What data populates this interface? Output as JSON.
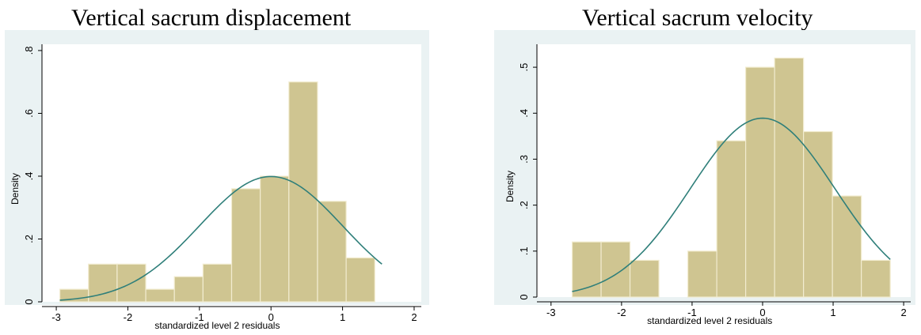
{
  "chart_data": [
    {
      "type": "histogram",
      "title": "Vertical sacrum displacement",
      "xlabel": "standardized level 2 residuals",
      "ylabel": "Density",
      "xlim": [
        -3.2,
        2.1
      ],
      "ylim": [
        0,
        0.82
      ],
      "xticks": [
        -3,
        -2,
        -1,
        0,
        1,
        2
      ],
      "yticks": [
        0,
        0.2,
        0.4,
        0.6,
        0.8
      ],
      "ytick_labels": [
        "0",
        ".2",
        ".4",
        ".6",
        ".8"
      ],
      "bins": [
        {
          "x0": -2.95,
          "x1": -2.55,
          "density": 0.04
        },
        {
          "x0": -2.55,
          "x1": -2.15,
          "density": 0.12
        },
        {
          "x0": -2.15,
          "x1": -1.75,
          "density": 0.12
        },
        {
          "x0": -1.75,
          "x1": -1.35,
          "density": 0.04
        },
        {
          "x0": -1.35,
          "x1": -0.95,
          "density": 0.08
        },
        {
          "x0": -0.95,
          "x1": -0.55,
          "density": 0.12
        },
        {
          "x0": -0.55,
          "x1": -0.15,
          "density": 0.36
        },
        {
          "x0": -0.15,
          "x1": 0.25,
          "density": 0.4
        },
        {
          "x0": 0.25,
          "x1": 0.65,
          "density": 0.7
        },
        {
          "x0": 0.65,
          "x1": 1.05,
          "density": 0.32
        },
        {
          "x0": 1.05,
          "x1": 1.45,
          "density": 0.14
        }
      ],
      "curve": {
        "type": "normal",
        "mean": 0,
        "sd": 1,
        "x_range": [
          -2.95,
          1.55
        ]
      },
      "colors": {
        "bar_fill": "#cfc591",
        "bar_edge": "#f2ecd0",
        "curve": "#2f7f7a",
        "plot_bg": "#eaf2f3",
        "plot_area": "#ffffff",
        "axis": "#000000"
      }
    },
    {
      "type": "histogram",
      "title": "Vertical sacrum velocity",
      "xlabel": "standardized level 2 residuals",
      "ylabel": "Density",
      "xlim": [
        -3.2,
        2.1
      ],
      "ylim": [
        0,
        0.55
      ],
      "xticks": [
        -3,
        -2,
        -1,
        0,
        1,
        2
      ],
      "yticks": [
        0,
        0.1,
        0.2,
        0.3,
        0.4,
        0.5
      ],
      "ytick_labels": [
        "0",
        ".1",
        ".2",
        ".3",
        ".4",
        ".5"
      ],
      "bins": [
        {
          "x0": -2.7,
          "x1": -2.29,
          "density": 0.12
        },
        {
          "x0": -2.29,
          "x1": -1.88,
          "density": 0.12
        },
        {
          "x0": -1.88,
          "x1": -1.47,
          "density": 0.08
        },
        {
          "x0": -1.06,
          "x1": -0.65,
          "density": 0.1
        },
        {
          "x0": -0.65,
          "x1": -0.24,
          "density": 0.34
        },
        {
          "x0": -0.24,
          "x1": 0.17,
          "density": 0.5
        },
        {
          "x0": 0.17,
          "x1": 0.58,
          "density": 0.52
        },
        {
          "x0": 0.58,
          "x1": 0.99,
          "density": 0.36
        },
        {
          "x0": 0.99,
          "x1": 1.4,
          "density": 0.22
        },
        {
          "x0": 1.4,
          "x1": 1.81,
          "density": 0.08
        }
      ],
      "curve": {
        "type": "normal",
        "mean": 0,
        "sd": 1.025,
        "x_range": [
          -2.7,
          1.81
        ]
      },
      "colors": {
        "bar_fill": "#cfc591",
        "bar_edge": "#f2ecd0",
        "curve": "#2f7f7a",
        "plot_bg": "#eaf2f3",
        "plot_area": "#ffffff",
        "axis": "#000000"
      }
    }
  ]
}
